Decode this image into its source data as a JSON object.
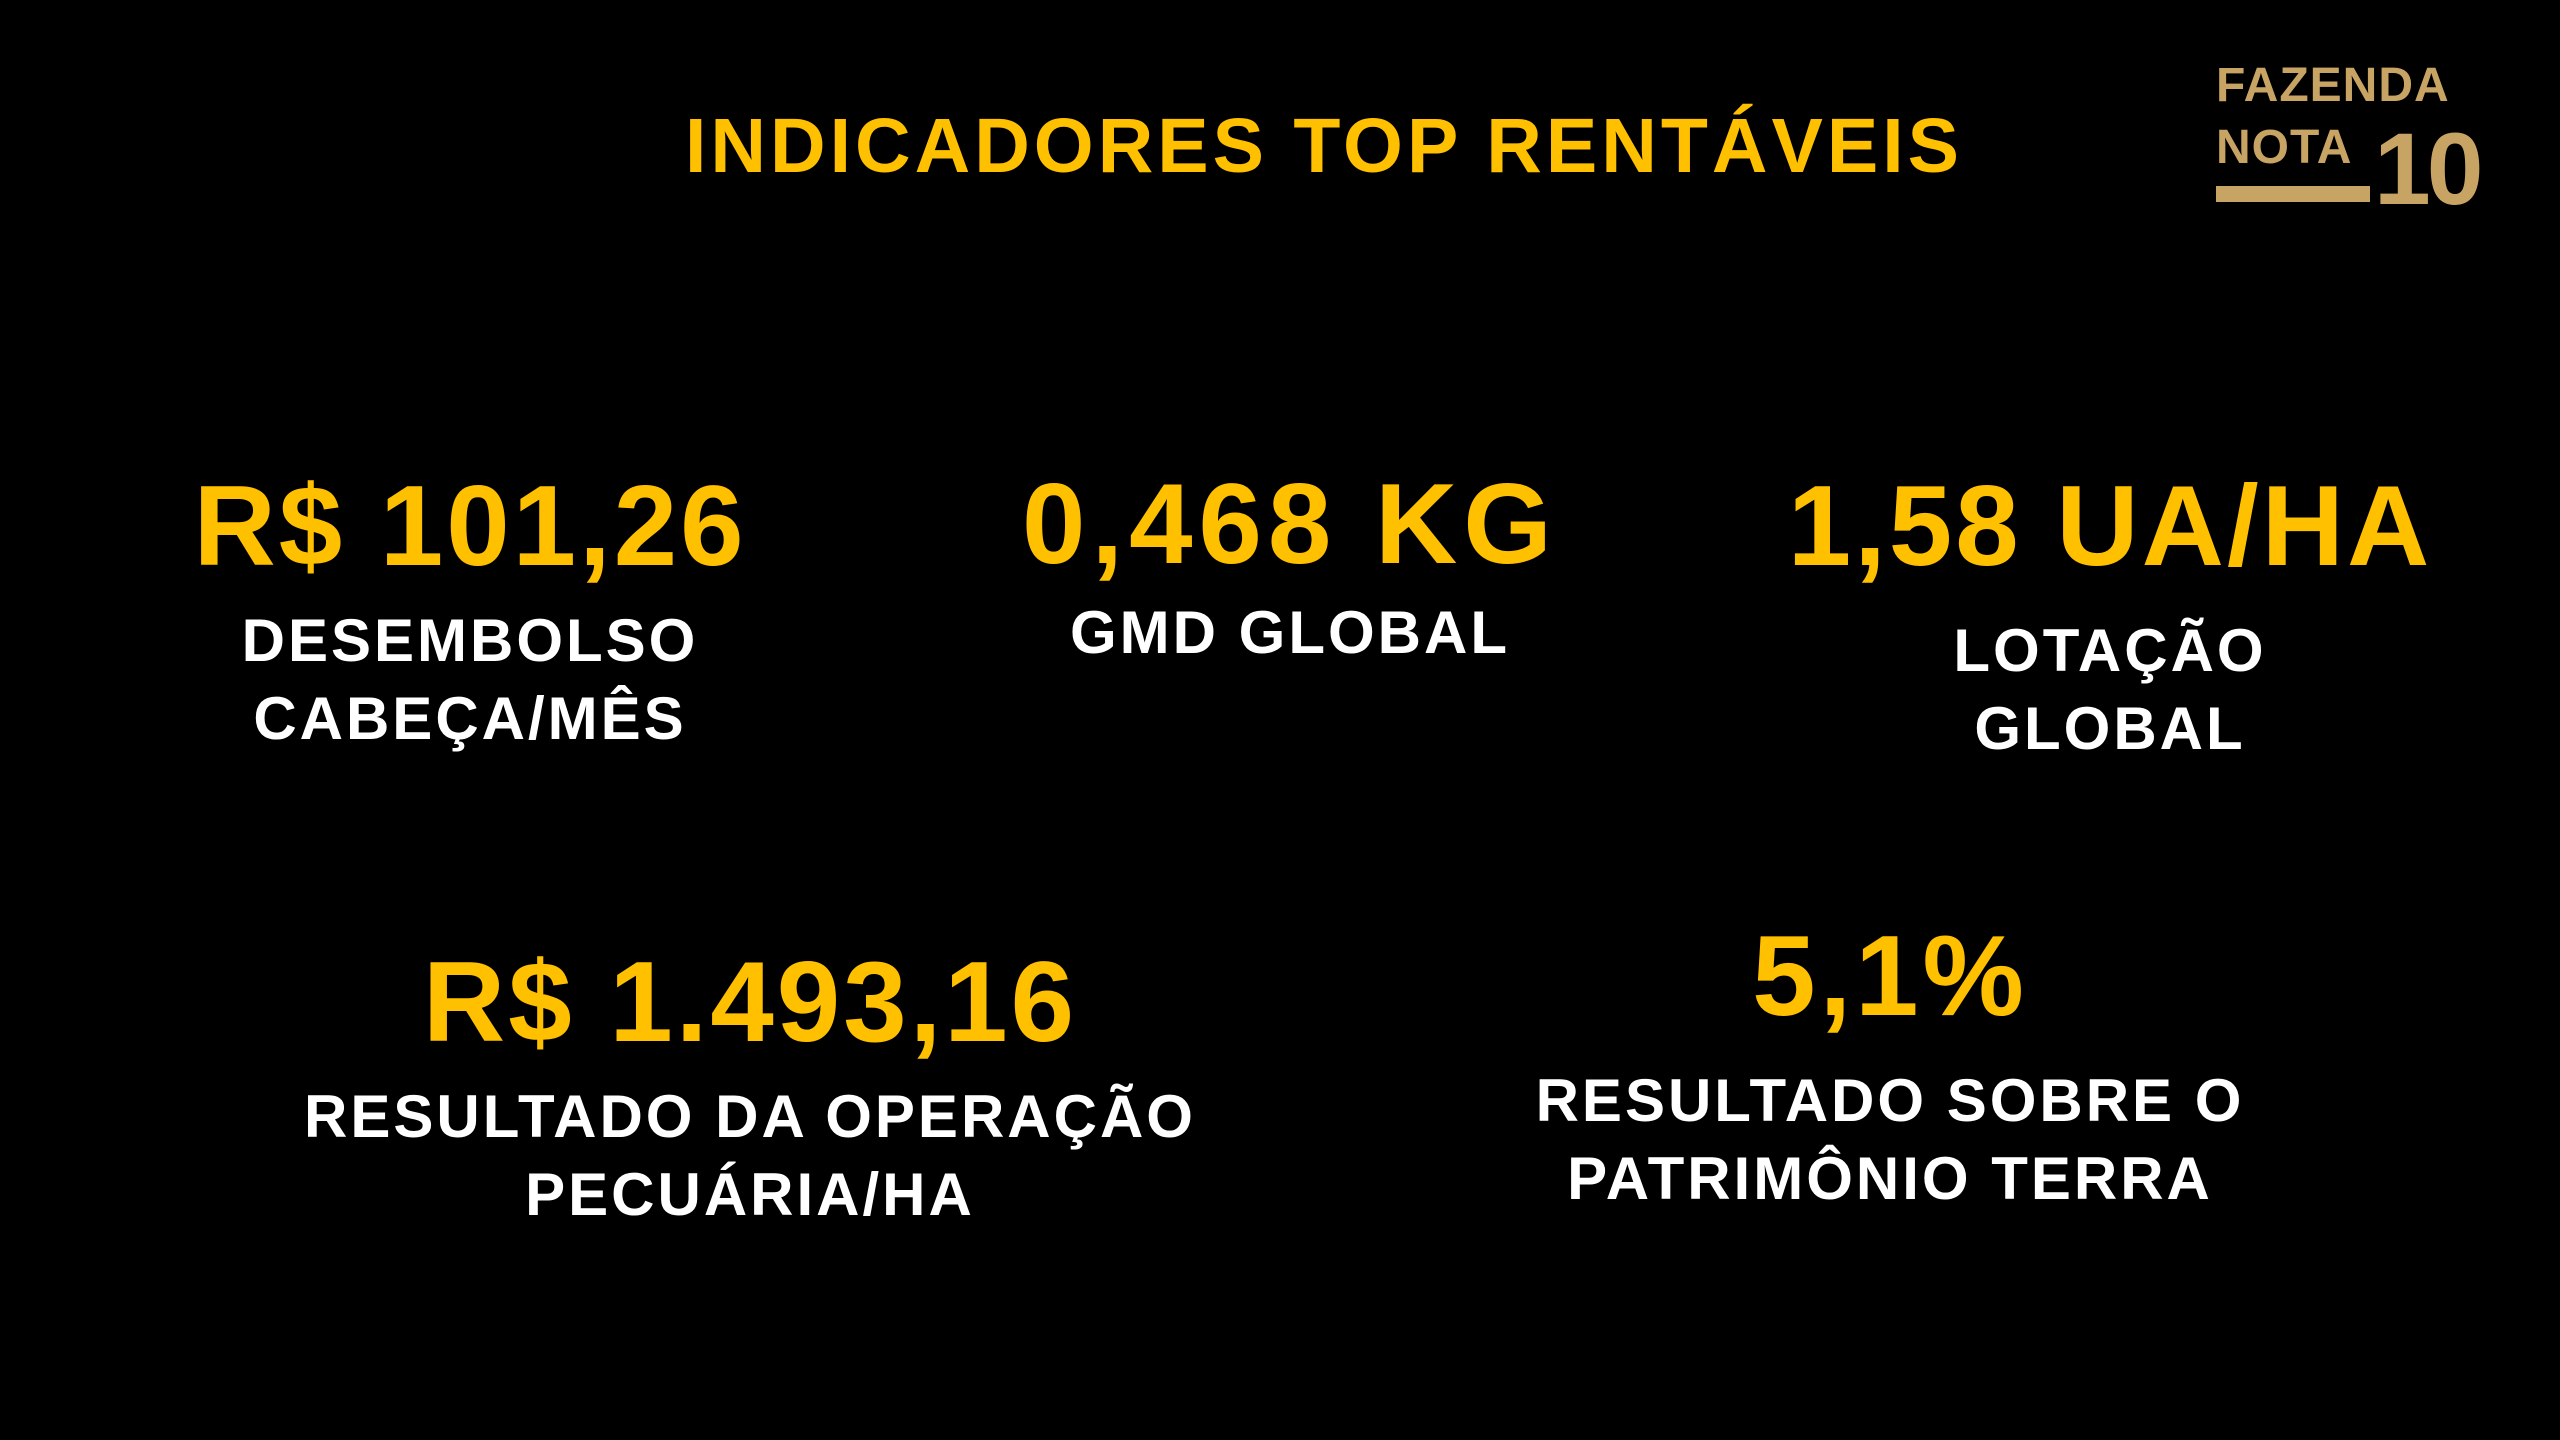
{
  "title": "INDICADORES TOP RENTÁVEIS",
  "logo": {
    "line1": "FAZENDA",
    "line2": "NOTA",
    "number": "10"
  },
  "colors": {
    "background": "#000000",
    "accent": "#FFC000",
    "label": "#FFFFFF",
    "logo": "#C8A464"
  },
  "indicators": [
    {
      "value": "R$ 101,26",
      "label": "DESEMBOLSO\nCABEÇA/MÊS"
    },
    {
      "value": "0,468 KG",
      "label": "GMD GLOBAL"
    },
    {
      "value": "1,58 UA/HA",
      "label": "LOTAÇÃO\nGLOBAL"
    },
    {
      "value": "R$ 1.493,16",
      "label": "RESULTADO DA OPERAÇÃO\nPECUÁRIA/HA"
    },
    {
      "value": "5,1%",
      "label": "RESULTADO SOBRE O\nPATRIMÔNIO TERRA"
    }
  ]
}
